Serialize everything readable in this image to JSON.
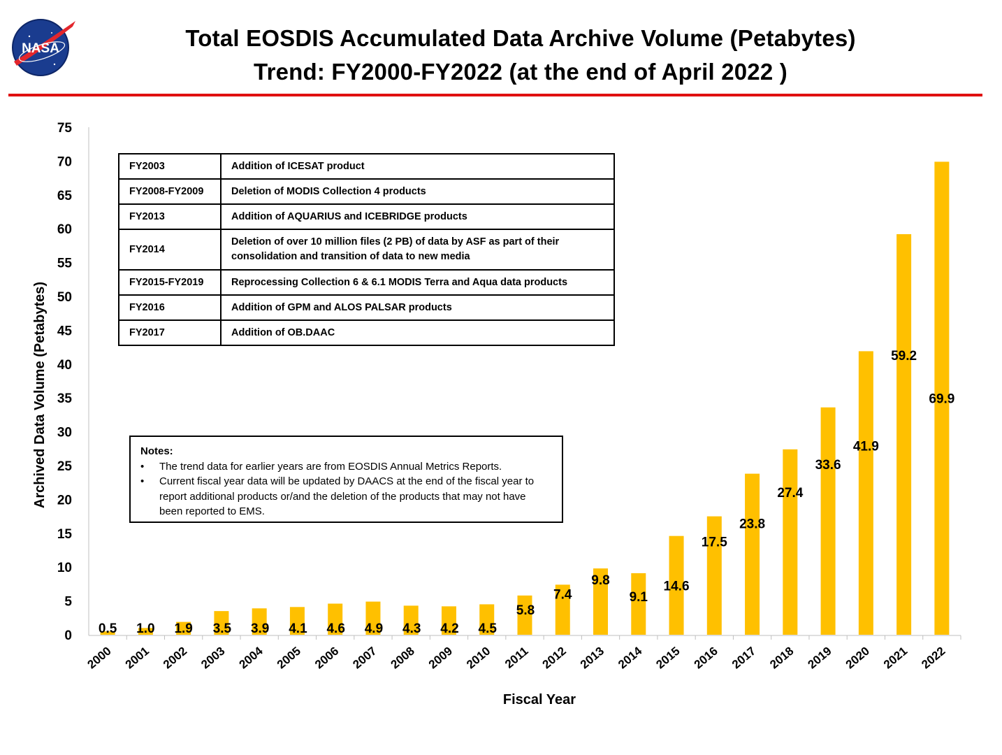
{
  "logo": {
    "text": "NASA"
  },
  "header": {
    "title_line1": "Total EOSDIS Accumulated Data Archive Volume (Petabytes)",
    "title_line2": "Trend: FY2000-FY2022 (at the end of April 2022 )"
  },
  "events_table": [
    {
      "year": "FY2003",
      "event": "Addition of ICESAT product"
    },
    {
      "year": "FY2008-FY2009",
      "event": "Deletion of  MODIS Collection 4 products"
    },
    {
      "year": "FY2013",
      "event": "Addition of AQUARIUS and ICEBRIDGE products"
    },
    {
      "year": "FY2014",
      "event": "Deletion of over 10 million files (2 PB) of data by ASF as part of their consolidation and transition of data to new media"
    },
    {
      "year": "FY2015-FY2019",
      "event": "Reprocessing  Collection 6 & 6.1 MODIS Terra and Aqua data products"
    },
    {
      "year": "FY2016",
      "event": "Addition of GPM and ALOS PALSAR products"
    },
    {
      "year": "FY2017",
      "event": "Addition of OB.DAAC"
    }
  ],
  "notes": {
    "heading": "Notes:",
    "items": [
      "The trend data for earlier years are from EOSDIS Annual Metrics Reports.",
      "Current fiscal year data will be updated by DAACS at the end of the fiscal year to report additional products or/and the deletion of the products that may not have been reported to EMS."
    ]
  },
  "chart_data": {
    "type": "bar",
    "title": "Total EOSDIS Accumulated Data Archive Volume (Petabytes) Trend: FY2000-FY2022 (at the end of April 2022 )",
    "xlabel": "Fiscal Year",
    "ylabel": "Archived Data Volume (Petabytes)",
    "ylim": [
      0,
      75
    ],
    "yticks": [
      0,
      5,
      10,
      15,
      20,
      25,
      30,
      35,
      40,
      45,
      50,
      55,
      60,
      65,
      70,
      75
    ],
    "categories": [
      "2000",
      "2001",
      "2002",
      "2003",
      "2004",
      "2005",
      "2006",
      "2007",
      "2008",
      "2009",
      "2010",
      "2011",
      "2012",
      "2013",
      "2014",
      "2015",
      "2016",
      "2017",
      "2018",
      "2019",
      "2020",
      "2021",
      "2022"
    ],
    "values": [
      0.5,
      1.0,
      1.9,
      3.5,
      3.9,
      4.1,
      4.6,
      4.9,
      4.3,
      4.2,
      4.5,
      5.8,
      7.4,
      9.8,
      9.1,
      14.6,
      17.5,
      23.8,
      27.4,
      33.6,
      41.9,
      59.2,
      69.9
    ],
    "data_labels": [
      "0.5",
      "1.0",
      "1.9",
      "3.5",
      "3.9",
      "4.1",
      "4.6",
      "4.9",
      "4.3",
      "4.2",
      "4.5",
      "5.8",
      "7.4",
      "9.8",
      "9.1",
      "14.6",
      "17.5",
      "23.8",
      "27.4",
      "33.6",
      "41.9",
      "59.2",
      "69.9"
    ],
    "bar_color": "#ffc000",
    "grid": false,
    "legend": "none"
  },
  "colors": {
    "rule": "#e01010",
    "bar": "#ffc000",
    "axis": "#bfbfbf"
  }
}
